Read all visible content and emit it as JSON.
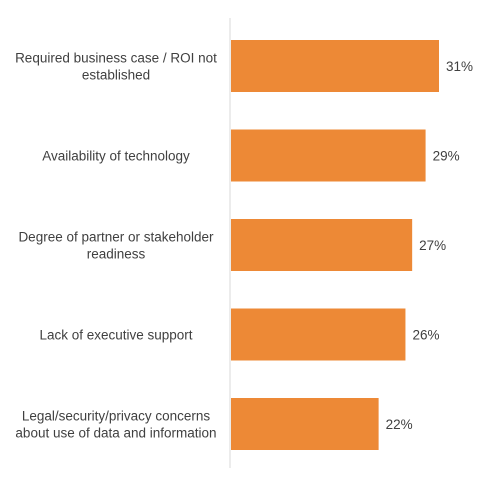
{
  "chart_data": {
    "type": "bar",
    "orientation": "horizontal",
    "title": "",
    "xlabel": "",
    "ylabel": "",
    "xlim": [
      0,
      33
    ],
    "grid": false,
    "legend": "none",
    "value_suffix": "%",
    "bar_color": "#ED8936",
    "categories": [
      [
        "Required business case / ROI not",
        "established"
      ],
      [
        "Availability of technology"
      ],
      [
        "Degree of partner or stakeholder",
        "readiness"
      ],
      [
        "Lack of executive support"
      ],
      [
        "Legal/security/privacy concerns",
        "about use of data and information"
      ]
    ],
    "values": [
      31,
      29,
      27,
      26,
      22
    ],
    "value_labels": [
      "31%",
      "29%",
      "27%",
      "26%",
      "22%"
    ]
  }
}
